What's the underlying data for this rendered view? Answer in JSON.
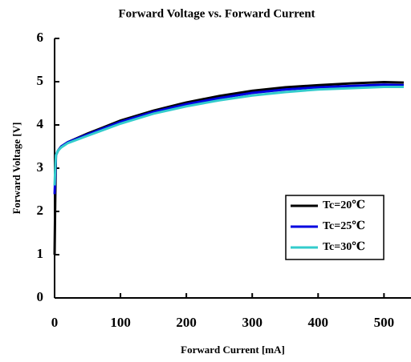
{
  "chart_data": {
    "type": "line",
    "title": "Forward Voltage  vs.  Forward Current",
    "x_label": "Forward Current [mA]",
    "y_label": "Forward Voltage [V]",
    "x": [
      0,
      1,
      2,
      5,
      10,
      20,
      50,
      100,
      150,
      200,
      250,
      300,
      350,
      400,
      450,
      500,
      530
    ],
    "series": [
      {
        "name": "Tc=20℃",
        "color": "#000000",
        "values": [
          1.0,
          2.3,
          3.3,
          3.4,
          3.5,
          3.6,
          3.8,
          4.1,
          4.33,
          4.52,
          4.67,
          4.79,
          4.87,
          4.92,
          4.96,
          4.99,
          4.98
        ]
      },
      {
        "name": "Tc=25℃",
        "color": "#0000e0",
        "values": [
          2.4,
          2.8,
          3.3,
          3.4,
          3.5,
          3.6,
          3.78,
          4.07,
          4.3,
          4.48,
          4.62,
          4.74,
          4.82,
          4.87,
          4.9,
          4.93,
          4.92
        ]
      },
      {
        "name": "Tc=30℃",
        "color": "#33cccc",
        "values": [
          2.6,
          3.0,
          3.3,
          3.4,
          3.48,
          3.58,
          3.75,
          4.03,
          4.26,
          4.43,
          4.57,
          4.68,
          4.76,
          4.82,
          4.85,
          4.88,
          4.88
        ]
      }
    ],
    "xlim": [
      0,
      541
    ],
    "xticks": [
      0,
      100,
      200,
      300,
      400,
      500
    ],
    "ylim": [
      0,
      6
    ],
    "yticks": [
      0,
      1,
      2,
      3,
      4,
      5,
      6
    ],
    "legend": "center right",
    "grid": false
  }
}
